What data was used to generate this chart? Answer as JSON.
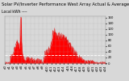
{
  "title": "Solar PV/Inverter Performance West Array Actual & Average Power Output",
  "subtitle": "Local kWh ----",
  "background_color": "#d8d8d8",
  "plot_bg_color": "#d8d8d8",
  "grid_color": "#aaaaaa",
  "fill_color": "#ff0000",
  "line_color": "#dd0000",
  "avg_line_color": "#ffffff",
  "ylim": [
    0,
    165
  ],
  "ytick_labels": [
    "160",
    "140",
    "120",
    "100",
    "80",
    "60",
    "40",
    "20",
    "0"
  ],
  "ytick_values": [
    160,
    140,
    120,
    100,
    80,
    60,
    40,
    20,
    0
  ],
  "avg_line_y": 28,
  "title_fontsize": 3.8,
  "tick_fontsize": 2.8,
  "num_points": 400
}
